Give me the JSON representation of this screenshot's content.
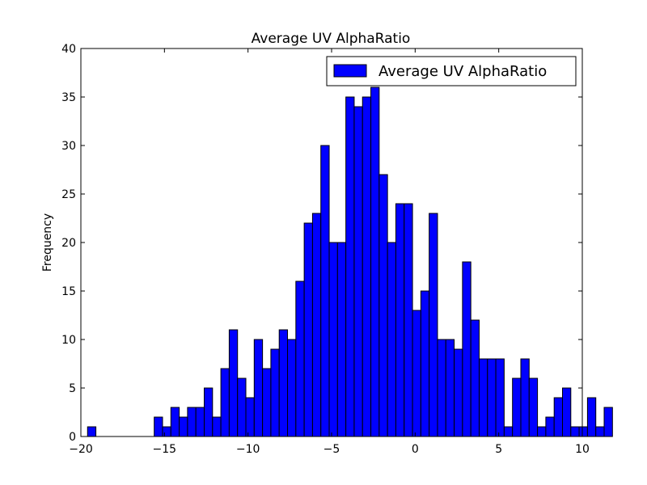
{
  "chart_data": {
    "type": "bar",
    "title": "Average UV AlphaRatio",
    "xlabel": "",
    "ylabel": "Frequency",
    "xlim": [
      -20,
      10
    ],
    "ylim": [
      0,
      40
    ],
    "xticks": [
      -20,
      -15,
      -10,
      -5,
      0,
      5,
      10
    ],
    "xtick_labels": [
      "−20",
      "−15",
      "−10",
      "−5",
      "0",
      "5",
      "10"
    ],
    "yticks": [
      0,
      5,
      10,
      15,
      20,
      25,
      30,
      35,
      40
    ],
    "ytick_labels": [
      "0",
      "5",
      "10",
      "15",
      "20",
      "25",
      "30",
      "35",
      "40"
    ],
    "grid": false,
    "legend_position": "top-right",
    "series": [
      {
        "name": "Average UV AlphaRatio",
        "color": "#0000ff",
        "bin_start": -19.6,
        "bin_width": 0.4985,
        "counts": [
          1,
          0,
          0,
          0,
          0,
          0,
          0,
          0,
          2,
          1,
          3,
          2,
          3,
          3,
          5,
          2,
          7,
          11,
          6,
          4,
          10,
          7,
          9,
          11,
          10,
          16,
          22,
          23,
          30,
          20,
          20,
          35,
          34,
          35,
          36,
          27,
          20,
          24,
          24,
          13,
          15,
          23,
          10,
          10,
          9,
          18,
          12,
          8,
          8,
          8,
          1,
          6,
          8,
          6,
          1,
          2,
          4,
          5,
          1,
          1,
          4,
          1,
          3
        ]
      }
    ]
  }
}
